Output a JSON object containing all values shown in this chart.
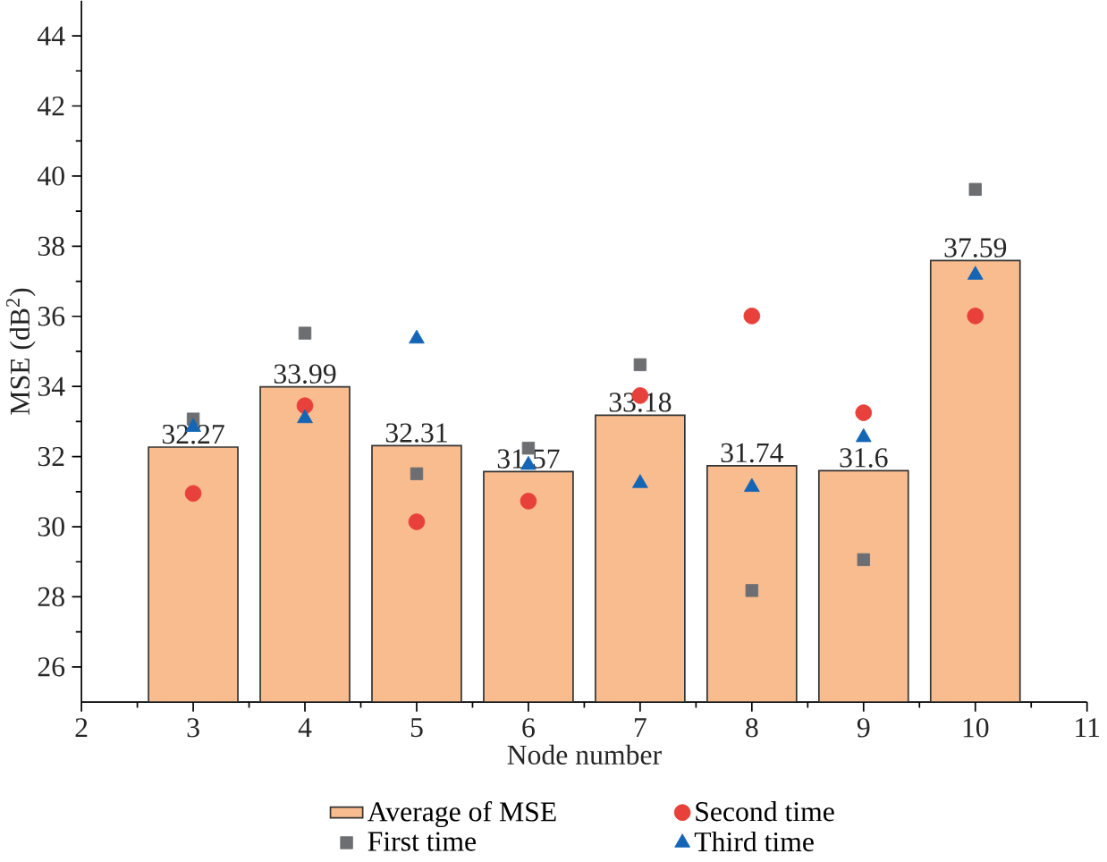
{
  "chart_data": {
    "type": "bar",
    "xlabel": "Node number",
    "ylabel": "MSE (dB$^{2}$)",
    "xlim": [
      2,
      11
    ],
    "ylim": [
      25,
      45
    ],
    "xticks": [
      2,
      3,
      4,
      5,
      6,
      7,
      8,
      9,
      10,
      11
    ],
    "yticks": [
      26,
      28,
      30,
      32,
      34,
      36,
      38,
      40,
      42,
      44
    ],
    "legend": "bottom",
    "series": [
      {
        "name": "Average of MSE",
        "type": "bar",
        "color": "#f9bc8f",
        "x": [
          3,
          4,
          5,
          6,
          7,
          8,
          9,
          10
        ],
        "values": [
          32.27,
          33.99,
          32.31,
          31.57,
          33.18,
          31.74,
          31.6,
          37.59
        ],
        "value_labels": [
          "32.27",
          "33.99",
          "32.31",
          "31.57",
          "33.18",
          "31.74",
          "31.6",
          "37.59"
        ]
      },
      {
        "name": "First time",
        "type": "scatter",
        "marker": "square",
        "color": "#6d6e71",
        "x": [
          3,
          4,
          5,
          6,
          7,
          8,
          9,
          10
        ],
        "values": [
          33.07,
          35.52,
          31.51,
          32.24,
          34.62,
          28.18,
          29.06,
          39.62
        ]
      },
      {
        "name": "Second time",
        "type": "scatter",
        "marker": "circle",
        "color": "#e8403a",
        "x": [
          3,
          4,
          5,
          6,
          7,
          8,
          9,
          10
        ],
        "values": [
          30.95,
          33.45,
          30.14,
          30.73,
          33.74,
          36.01,
          33.25,
          36.01
        ]
      },
      {
        "name": "Third time",
        "type": "scatter",
        "marker": "triangle",
        "color": "#1565b5",
        "x": [
          3,
          4,
          5,
          6,
          7,
          8,
          9,
          10
        ],
        "values": [
          32.84,
          33.09,
          35.36,
          31.76,
          31.24,
          31.13,
          32.55,
          37.18
        ]
      }
    ]
  }
}
